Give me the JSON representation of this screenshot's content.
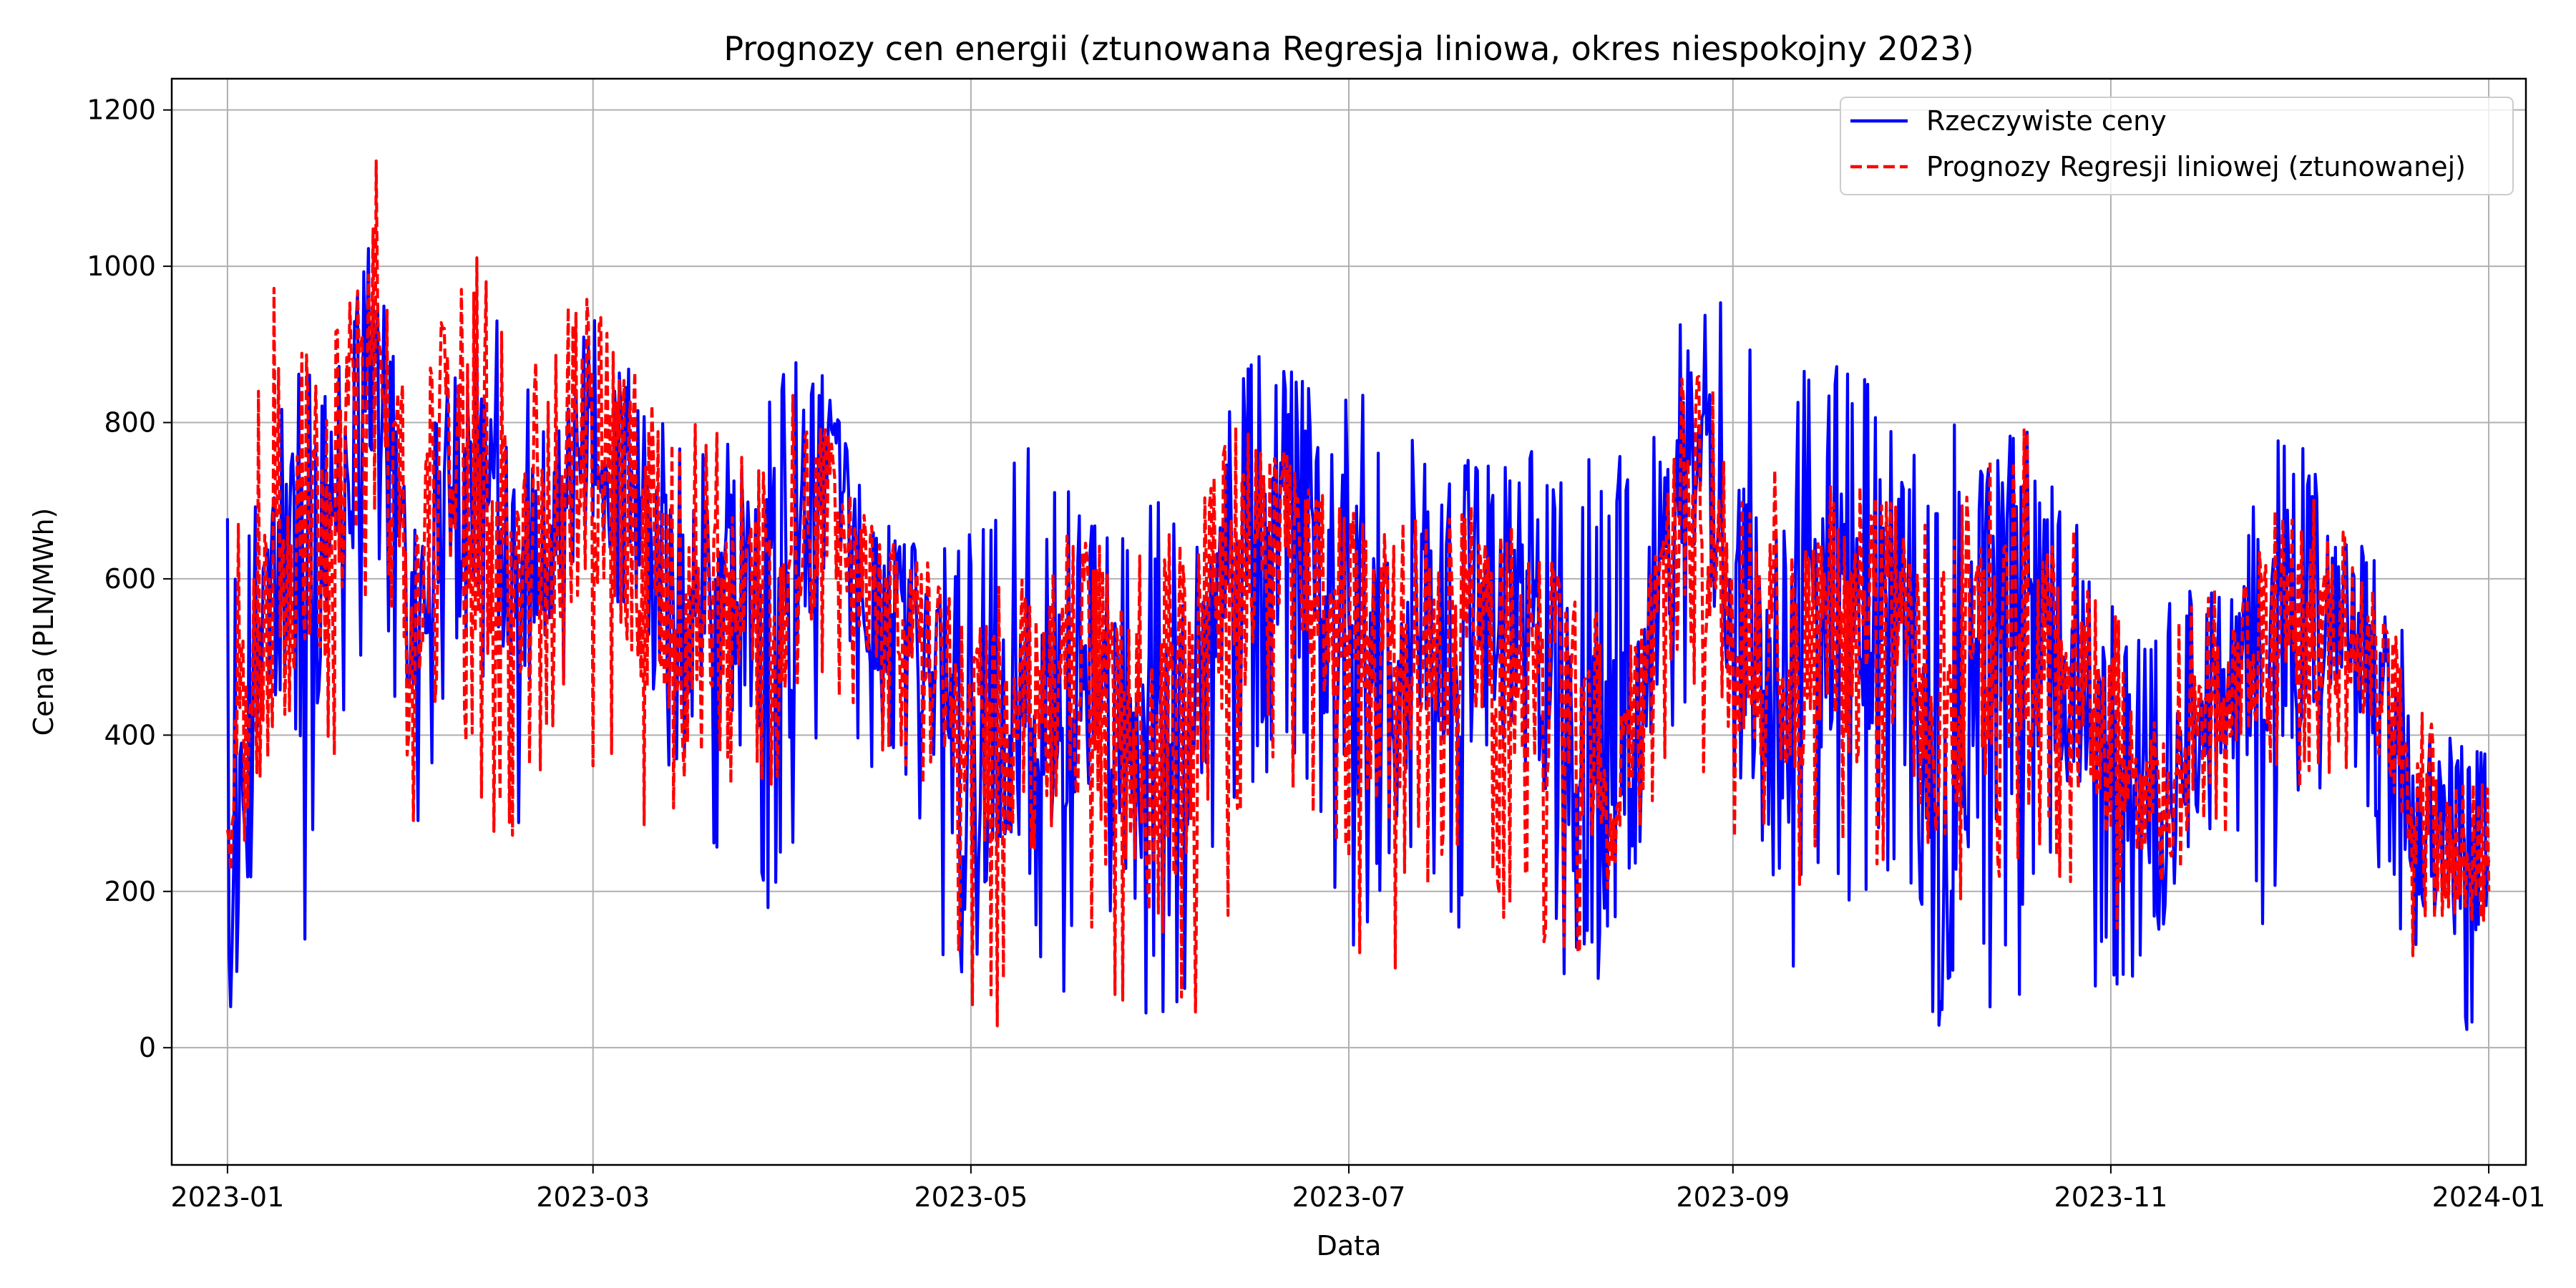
{
  "chart_data": {
    "type": "line",
    "title": "Prognozy cen energii (ztunowana Regresja liniowa, okres niespokojny 2023)",
    "xlabel": "Data",
    "ylabel": "Cena (PLN/MWh)",
    "grid": true,
    "legend_position": "top-right",
    "xlim": [
      "2022-12-23",
      "2024-01-07"
    ],
    "ylim": [
      -150,
      1240
    ],
    "x_ticks": [
      "2023-01-01",
      "2023-03-01",
      "2023-05-01",
      "2023-07-01",
      "2023-09-01",
      "2023-11-01",
      "2024-01-01"
    ],
    "x_tick_labels": [
      "2023-01",
      "2023-03",
      "2023-05",
      "2023-07",
      "2023-09",
      "2023-11",
      "2024-01"
    ],
    "y_ticks": [
      0,
      200,
      400,
      600,
      800,
      1000,
      1200
    ],
    "y_tick_labels": [
      "0",
      "200",
      "400",
      "600",
      "800",
      "1000",
      "1200"
    ],
    "x": [
      "2023-01-01",
      "2023-01-07",
      "2023-01-13",
      "2023-01-19",
      "2023-01-25",
      "2023-01-31",
      "2023-02-06",
      "2023-02-12",
      "2023-02-18",
      "2023-02-24",
      "2023-03-02",
      "2023-03-08",
      "2023-03-14",
      "2023-03-20",
      "2023-03-26",
      "2023-04-01",
      "2023-04-07",
      "2023-04-13",
      "2023-04-19",
      "2023-04-25",
      "2023-05-01",
      "2023-05-07",
      "2023-05-13",
      "2023-05-19",
      "2023-05-25",
      "2023-05-31",
      "2023-06-06",
      "2023-06-12",
      "2023-06-18",
      "2023-06-24",
      "2023-06-30",
      "2023-07-06",
      "2023-07-12",
      "2023-07-18",
      "2023-07-24",
      "2023-07-30",
      "2023-08-05",
      "2023-08-11",
      "2023-08-17",
      "2023-08-23",
      "2023-08-29",
      "2023-09-04",
      "2023-09-10",
      "2023-09-16",
      "2023-09-22",
      "2023-09-28",
      "2023-10-04",
      "2023-10-10",
      "2023-10-16",
      "2023-10-22",
      "2023-10-28",
      "2023-11-03",
      "2023-11-09",
      "2023-11-15",
      "2023-11-21",
      "2023-11-27",
      "2023-12-03",
      "2023-12-09",
      "2023-12-15",
      "2023-12-21",
      "2023-12-27",
      "2024-01-01"
    ],
    "series": [
      {
        "name": "Rzeczywiste ceny",
        "color": "#0000ff",
        "style": "solid",
        "values": [
          50,
          560,
          590,
          720,
          900,
          570,
          760,
          720,
          620,
          700,
          780,
          620,
          560,
          560,
          560,
          540,
          760,
          590,
          560,
          520,
          300,
          420,
          450,
          520,
          380,
          300,
          480,
          640,
          720,
          640,
          560,
          420,
          560,
          560,
          560,
          560,
          420,
          280,
          460,
          720,
          680,
          520,
          480,
          560,
          560,
          580,
          160,
          460,
          560,
          580,
          380,
          380,
          260,
          400,
          460,
          520,
          560,
          560,
          480,
          280,
          260,
          240
        ],
        "min": [
          30,
          300,
          75,
          330,
          600,
          190,
          500,
          420,
          260,
          450,
          550,
          280,
          330,
          260,
          85,
          200,
          350,
          340,
          360,
          100,
          90,
          230,
          70,
          55,
          150,
          0,
          80,
          300,
          350,
          300,
          10,
          200,
          250,
          35,
          180,
          70,
          70,
          90,
          250,
          360,
          360,
          330,
          80,
          160,
          200,
          160,
          30,
          0,
          -20,
          200,
          40,
          60,
          150,
          220,
          280,
          90,
          320,
          330,
          200,
          80,
          -50,
          30
        ],
        "max": [
          680,
          780,
          920,
          900,
          1060,
          780,
          1005,
          1000,
          870,
          860,
          950,
          860,
          800,
          805,
          750,
          915,
          860,
          730,
          660,
          630,
          670,
          750,
          790,
          690,
          690,
          700,
          740,
          830,
          940,
          850,
          850,
          850,
          800,
          840,
          800,
          790,
          720,
          780,
          800,
          940,
          960,
          960,
          900,
          900,
          890,
          770,
          840,
          760,
          830,
          840,
          640,
          550,
          560,
          600,
          590,
          840,
          760,
          650,
          640,
          440,
          390,
          390
        ]
      },
      {
        "name": "Prognozy Regresji liniowej (ztunowanej)",
        "color": "#ff0000",
        "style": "dashed",
        "values": [
          280,
          520,
          640,
          700,
          940,
          560,
          760,
          700,
          600,
          700,
          780,
          640,
          560,
          560,
          560,
          540,
          720,
          580,
          560,
          520,
          360,
          420,
          430,
          500,
          370,
          300,
          460,
          600,
          660,
          600,
          540,
          420,
          540,
          540,
          520,
          500,
          440,
          300,
          440,
          640,
          600,
          540,
          480,
          520,
          520,
          540,
          360,
          480,
          540,
          540,
          420,
          380,
          300,
          380,
          440,
          560,
          560,
          540,
          460,
          260,
          240,
          200
        ],
        "min": [
          220,
          300,
          220,
          340,
          660,
          290,
          460,
          280,
          260,
          380,
          330,
          270,
          300,
          380,
          290,
          340,
          410,
          380,
          380,
          300,
          20,
          20,
          20,
          60,
          -60,
          -90,
          -40,
          170,
          360,
          300,
          170,
          -25,
          220,
          150,
          160,
          150,
          100,
          100,
          270,
          350,
          230,
          230,
          180,
          230,
          170,
          210,
          130,
          160,
          240,
          210,
          110,
          140,
          200,
          250,
          270,
          290,
          340,
          350,
          210,
          30,
          160,
          160
        ],
        "max": [
          620,
          990,
          930,
          930,
          1180,
          760,
          1025,
          1020,
          870,
          960,
          990,
          860,
          800,
          800,
          750,
          860,
          800,
          690,
          650,
          620,
          570,
          630,
          650,
          660,
          640,
          640,
          720,
          840,
          780,
          740,
          700,
          660,
          700,
          700,
          690,
          690,
          600,
          560,
          720,
          880,
          870,
          800,
          720,
          740,
          740,
          740,
          660,
          720,
          820,
          760,
          620,
          540,
          560,
          620,
          660,
          780,
          760,
          660,
          560,
          460,
          340,
          340
        ]
      }
    ]
  }
}
